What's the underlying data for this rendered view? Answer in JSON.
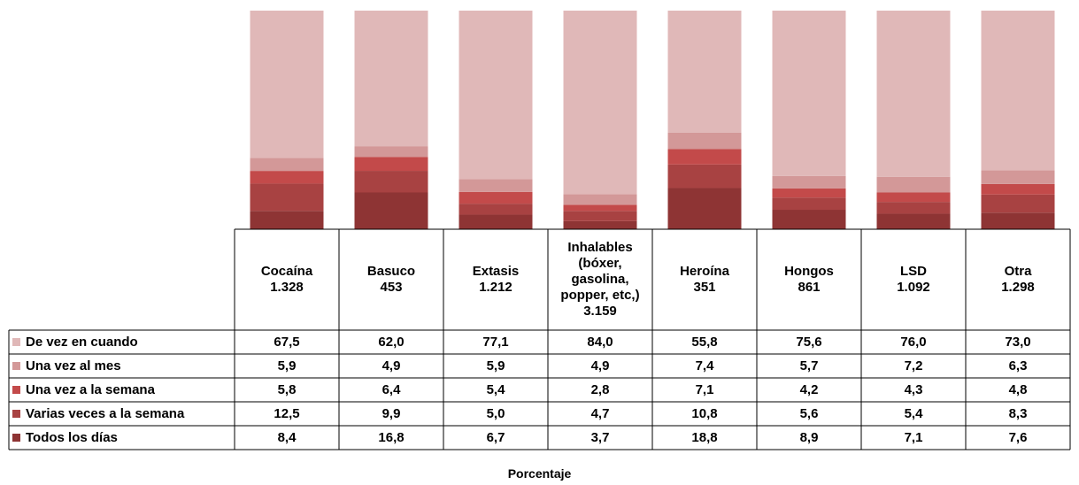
{
  "chart_data": {
    "type": "bar",
    "stacked": true,
    "normalized_percent": true,
    "categories": [
      {
        "name": "Cocaína",
        "n": "1.328"
      },
      {
        "name": "Basuco",
        "n": "453"
      },
      {
        "name": "Extasis",
        "n": "1.212"
      },
      {
        "name": "Inhalables\n(bóxer,\ngasolina,\npopper, etc,)",
        "n": "3.159"
      },
      {
        "name": "Heroína",
        "n": "351"
      },
      {
        "name": "Hongos",
        "n": "861"
      },
      {
        "name": "LSD",
        "n": "1.092"
      },
      {
        "name": "Otra",
        "n": "1.298"
      }
    ],
    "series": [
      {
        "name": "De vez en cuando",
        "color": "#e0b8b8",
        "labels": [
          "67,5",
          "62,0",
          "77,1",
          "84,0",
          "55,8",
          "75,6",
          "76,0",
          "73,0"
        ],
        "values": [
          67.5,
          62.0,
          77.1,
          84.0,
          55.8,
          75.6,
          76.0,
          73.0
        ]
      },
      {
        "name": "Una vez al mes",
        "color": "#d39898",
        "labels": [
          "5,9",
          "4,9",
          "5,9",
          "4,9",
          "7,4",
          "5,7",
          "7,2",
          "6,3"
        ],
        "values": [
          5.9,
          4.9,
          5.9,
          4.9,
          7.4,
          5.7,
          7.2,
          6.3
        ]
      },
      {
        "name": "Una vez a la semana",
        "color": "#c34a4a",
        "labels": [
          "5,8",
          "6,4",
          "5,4",
          "2,8",
          "7,1",
          "4,2",
          "4,3",
          "4,8"
        ],
        "values": [
          5.8,
          6.4,
          5.4,
          2.8,
          7.1,
          4.2,
          4.3,
          4.8
        ]
      },
      {
        "name": "Varias veces a la semana",
        "color": "#a84242",
        "labels": [
          "12,5",
          "9,9",
          "5,0",
          "4,7",
          "10,8",
          "5,6",
          "5,4",
          "8,3"
        ],
        "values": [
          12.5,
          9.9,
          5.0,
          4.7,
          10.8,
          5.6,
          5.4,
          8.3
        ]
      },
      {
        "name": "Todos los días",
        "color": "#8e3434",
        "labels": [
          "8,4",
          "16,8",
          "6,7",
          "3,7",
          "18,8",
          "8,9",
          "7,1",
          "7,6"
        ],
        "values": [
          8.4,
          16.8,
          6.7,
          3.7,
          18.8,
          8.9,
          7.1,
          7.6
        ]
      }
    ],
    "xlabel": "Porcentaje",
    "ylim": [
      0,
      100
    ],
    "grid": false,
    "legend": "data-table-left"
  }
}
